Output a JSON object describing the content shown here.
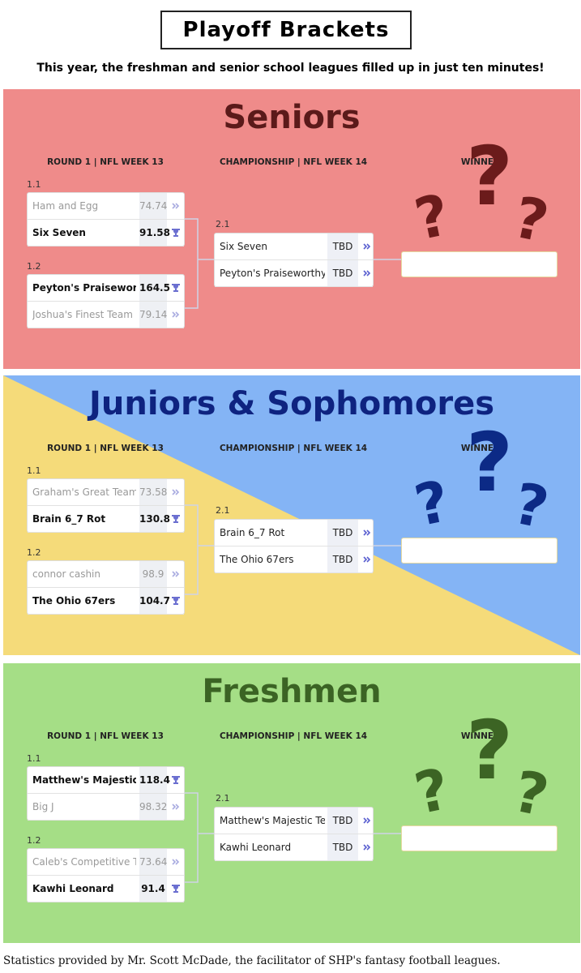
{
  "header": {
    "title": "Playoff Brackets",
    "subtitle": "This year, the freshman and senior school leagues filled up in just ten minutes!"
  },
  "sections": [
    {
      "title": "Seniors",
      "round1": "ROUND 1 | NFL WEEK 13",
      "championship": "CHAMPIONSHIP | NFL WEEK 14",
      "winner": "WINNER",
      "winner_glyph": "?",
      "matchups": [
        {
          "id": "1.1",
          "teams": [
            {
              "name": "Ham and Egg",
              "score": 74.74,
              "won": false
            },
            {
              "name": "Six Seven",
              "score": 91.58,
              "won": true
            }
          ]
        },
        {
          "id": "1.2",
          "teams": [
            {
              "name": "Peyton's Praiseworthy",
              "score": 164.5,
              "won": true
            },
            {
              "name": "Joshua's Finest Team",
              "score": 79.14,
              "won": false
            }
          ]
        }
      ],
      "final": {
        "id": "2.1",
        "teams": [
          {
            "name": "Six Seven",
            "score": "TBD"
          },
          {
            "name": "Peyton's Praiseworthy I",
            "score": "TBD"
          }
        ]
      }
    },
    {
      "title": "Juniors & Sophomores",
      "round1": "ROUND 1 | NFL WEEK 13",
      "championship": "CHAMPIONSHIP | NFL WEEK 14",
      "winner": "WINNER",
      "winner_glyph": "?",
      "matchups": [
        {
          "id": "1.1",
          "teams": [
            {
              "name": "Graham's Great Team",
              "score": 73.58,
              "won": false
            },
            {
              "name": "Brain 6_7 Rot",
              "score": 130.8,
              "won": true
            }
          ]
        },
        {
          "id": "1.2",
          "teams": [
            {
              "name": "connor cashin",
              "score": 98.9,
              "won": false
            },
            {
              "name": "The Ohio 67ers",
              "score": 104.7,
              "won": true
            }
          ]
        }
      ],
      "final": {
        "id": "2.1",
        "teams": [
          {
            "name": "Brain 6_7 Rot",
            "score": "TBD"
          },
          {
            "name": "The Ohio 67ers",
            "score": "TBD"
          }
        ]
      }
    },
    {
      "title": "Freshmen",
      "round1": "ROUND 1 | NFL WEEK 13",
      "championship": "CHAMPIONSHIP | NFL WEEK 14",
      "winner": "WINNER",
      "winner_glyph": "?",
      "matchups": [
        {
          "id": "1.1",
          "teams": [
            {
              "name": "Matthew's Majestic Te",
              "score": 118.4,
              "won": true
            },
            {
              "name": "Big J",
              "score": 98.32,
              "won": false
            }
          ]
        },
        {
          "id": "1.2",
          "teams": [
            {
              "name": "Caleb's Competitive Te",
              "score": 73.64,
              "won": false
            },
            {
              "name": "Kawhi Leonard",
              "score": 91.4,
              "won": true
            }
          ]
        }
      ],
      "final": {
        "id": "2.1",
        "teams": [
          {
            "name": "Matthew's Majestic Tea",
            "score": "TBD"
          },
          {
            "name": "Kawhi Leonard",
            "score": "TBD"
          }
        ]
      }
    }
  ],
  "footer": {
    "text": "Statistics provided by Mr. Scott McDade, the facilitator of SHP's fantasy football leagues."
  }
}
